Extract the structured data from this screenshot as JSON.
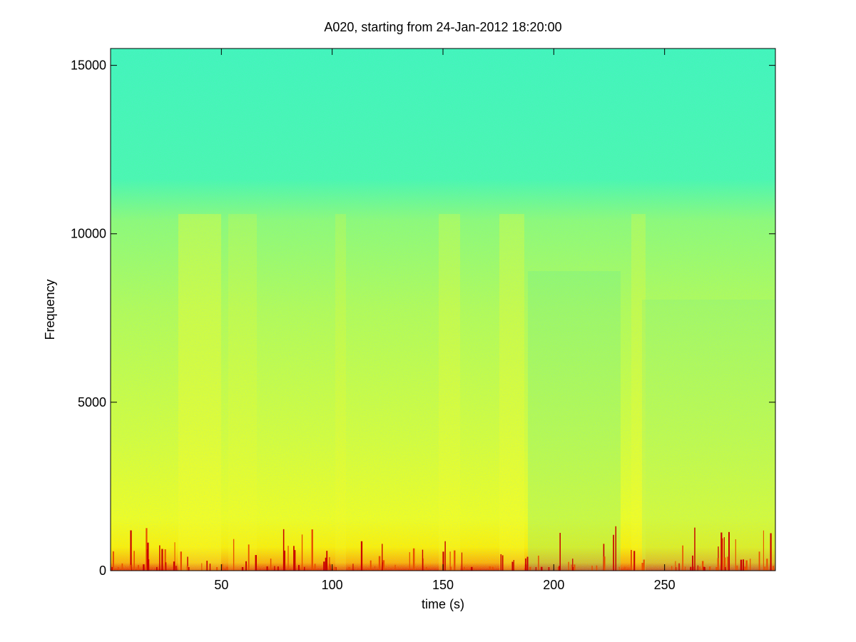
{
  "chart_data": {
    "type": "spectrogram",
    "title": "A020, starting from 24-Jan-2012 18:20:00",
    "xlabel": "time (s)",
    "ylabel": "Frequency",
    "xlim": [
      0,
      300
    ],
    "xticks": [
      50,
      100,
      150,
      200,
      250
    ],
    "ylim": [
      0,
      15500
    ],
    "yticks": [
      0,
      5000,
      10000,
      15000
    ]
  }
}
